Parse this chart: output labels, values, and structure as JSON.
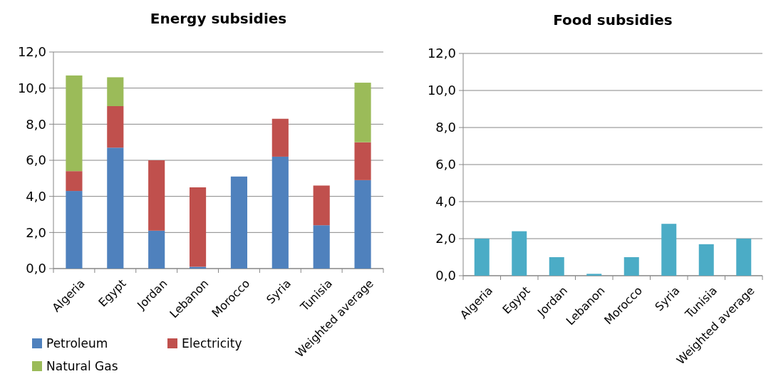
{
  "chart_data": [
    {
      "type": "bar",
      "title": "Energy subsidies",
      "categories": [
        "Algeria",
        "Egypt",
        "Jordan",
        "Lebanon",
        "Morocco",
        "Syria",
        "Tunisia",
        "Weighted average"
      ],
      "stacked": true,
      "series": [
        {
          "name": "Petroleum",
          "color": "#4f81bd",
          "values": [
            4.3,
            6.7,
            2.1,
            0.1,
            5.1,
            6.2,
            2.4,
            4.9
          ]
        },
        {
          "name": "Electricity",
          "color": "#c0504d",
          "values": [
            1.1,
            2.3,
            3.9,
            4.4,
            null,
            2.1,
            2.2,
            2.1
          ]
        },
        {
          "name": "Natural Gas",
          "color": "#9bbb59",
          "values": [
            5.3,
            1.6,
            null,
            null,
            null,
            null,
            null,
            3.3
          ]
        }
      ],
      "ylim": [
        0,
        12
      ],
      "yticks": [
        {
          "value": 0,
          "label": "0,0"
        },
        {
          "value": 2,
          "label": "2,0"
        },
        {
          "value": 4,
          "label": "4,0"
        },
        {
          "value": 6,
          "label": "6,0"
        },
        {
          "value": 8,
          "label": "8,0"
        },
        {
          "value": 10,
          "label": "10,0"
        },
        {
          "value": 12,
          "label": "12,0"
        }
      ],
      "grid": "y",
      "legend": "bottom"
    },
    {
      "type": "bar",
      "title": "Food subsidies",
      "categories": [
        "Algeria",
        "Egypt",
        "Jordan",
        "Lebanon",
        "Morocco",
        "Syria",
        "Tunisia",
        "Weighted average"
      ],
      "series": [
        {
          "color": "#4bacc6",
          "values": [
            2.0,
            2.4,
            1.0,
            0.1,
            1.0,
            2.8,
            1.7,
            2.0
          ]
        }
      ],
      "ylim": [
        0,
        12
      ],
      "yticks": [
        {
          "value": 0,
          "label": "0,0"
        },
        {
          "value": 2,
          "label": "2,0"
        },
        {
          "value": 4,
          "label": "4,0"
        },
        {
          "value": 6,
          "label": "6,0"
        },
        {
          "value": 8,
          "label": "8,0"
        },
        {
          "value": 10,
          "label": "10,0"
        },
        {
          "value": 12,
          "label": "12,0"
        }
      ],
      "grid": "y"
    }
  ]
}
